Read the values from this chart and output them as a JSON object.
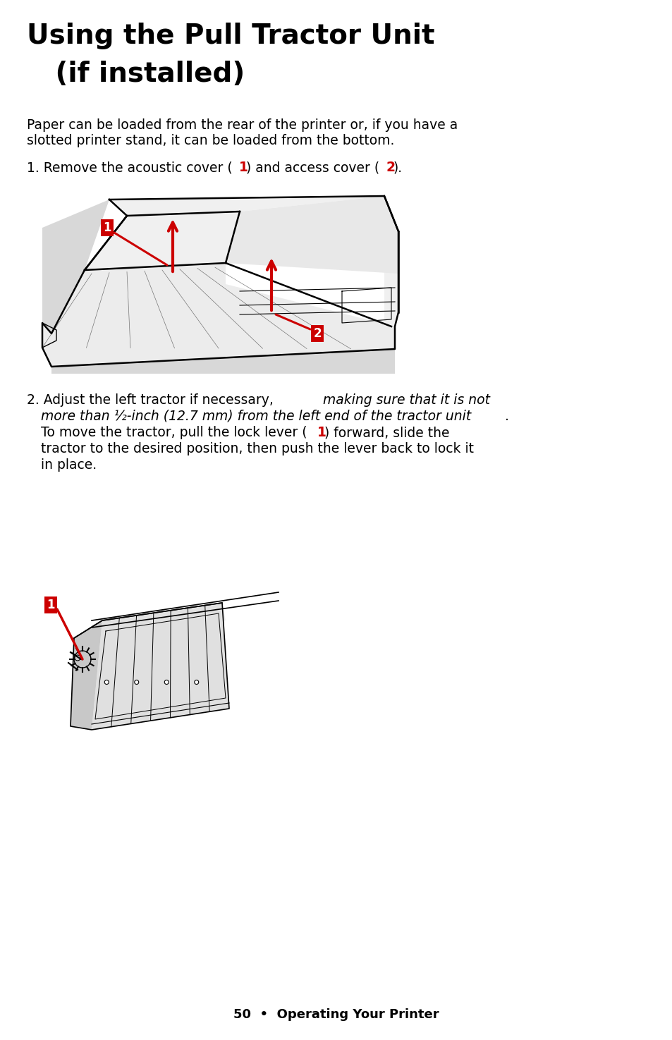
{
  "title_line1": "Using the Pull Tractor Unit",
  "title_line2": "   (if installed)",
  "body_text": "Paper can be loaded from the rear of the printer or, if you have a\nslotted printer stand, it can be loaded from the bottom.",
  "step1_text": "1. Remove the acoustic cover (",
  "step1_num1": "1",
  "step1_mid": ") and access cover (",
  "step1_num2": "2",
  "step1_end": ").",
  "step2_a": "2. Adjust the left tractor if necessary, ",
  "step2_b_italic": "making sure that it is not",
  "step2_c_italic": "more than ½-inch (12.7 mm) from the left end of the tractor unit",
  "step2_c_end": ".",
  "step2_d": "To move the tractor, pull the lock lever (",
  "step2_d_num": "1",
  "step2_d_end": ") forward, slide the",
  "step2_e": "tractor to the desired position, then push the lever back to lock it",
  "step2_f": "in place.",
  "footer": "50  •  Operating Your Printer",
  "bg_color": "#ffffff",
  "text_color": "#000000",
  "red_color": "#cc0000",
  "title_fs": 28,
  "body_fs": 13.5,
  "footer_fs": 13
}
